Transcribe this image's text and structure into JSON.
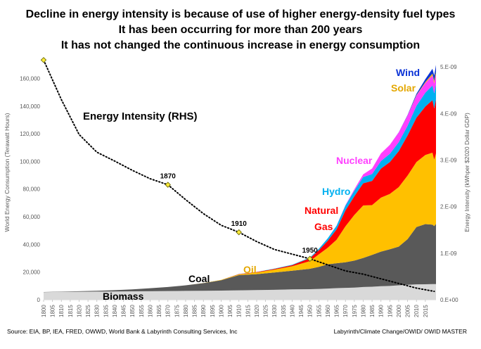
{
  "chart_data": {
    "type": "area",
    "title_lines": [
      "Decline in energy intensity is because of use of higher energy-density fuel types",
      "It has been occurring for more than 200 years",
      "It has not changed the continuous increase in energy consumption"
    ],
    "ylabel_left": "World Energy Consumption (Terawatt Hours)",
    "ylabel_right": "Energy Intensity (kWhper $2020 Dollar GDP)",
    "left_ylim": [
      0,
      175000
    ],
    "left_ticks": [
      {
        "v": 0,
        "label": "0"
      },
      {
        "v": 20000,
        "label": "20,000"
      },
      {
        "v": 40000,
        "label": "40,000"
      },
      {
        "v": 60000,
        "label": "60,000"
      },
      {
        "v": 80000,
        "label": "80,000"
      },
      {
        "v": 100000,
        "label": "100,000"
      },
      {
        "v": 120000,
        "label": "120,000"
      },
      {
        "v": 140000,
        "label": "140,000"
      },
      {
        "v": 160000,
        "label": "160,000"
      }
    ],
    "right_ylim": [
      0,
      5.2e-09
    ],
    "right_ticks": [
      {
        "v": 0,
        "label": "0.E+00"
      },
      {
        "v": 1e-09,
        "label": "1.E-09"
      },
      {
        "v": 2e-09,
        "label": "2.E-09"
      },
      {
        "v": 3e-09,
        "label": "3.E-09"
      },
      {
        "v": 4e-09,
        "label": "4.E-09"
      },
      {
        "v": 5e-09,
        "label": "5.E-09"
      }
    ],
    "x_range": [
      1800,
      2021
    ],
    "x_tick_labels": [
      "1800",
      "1805",
      "1810",
      "1815",
      "1820",
      "1825",
      "1830",
      "1835",
      "1840",
      "1845",
      "1850",
      "1855",
      "1860",
      "1865",
      "1870",
      "1875",
      "1880",
      "1885",
      "1890",
      "1895",
      "1900",
      "1905",
      "1910",
      "1915",
      "1920",
      "1925",
      "1930",
      "1935",
      "1940",
      "1945",
      "1950",
      "1955",
      "1960",
      "1965",
      "1970",
      "1975",
      "1980",
      "1985",
      "1990",
      "1995",
      "2000",
      "2005",
      "2010",
      "2015"
    ],
    "x": [
      1800,
      1810,
      1820,
      1830,
      1840,
      1850,
      1860,
      1870,
      1880,
      1890,
      1900,
      1910,
      1920,
      1930,
      1940,
      1950,
      1955,
      1960,
      1965,
      1970,
      1975,
      1980,
      1985,
      1990,
      1995,
      2000,
      2005,
      2010,
      2015,
      2019,
      2020,
      2021
    ],
    "series": [
      {
        "name": "Biomass",
        "color": "#d9d9d9",
        "values": [
          5500,
          5700,
          5800,
          5900,
          6000,
          6100,
          6200,
          6300,
          6400,
          6500,
          6600,
          6800,
          7000,
          7200,
          7500,
          7600,
          7800,
          8100,
          8400,
          8600,
          8800,
          9200,
          9400,
          9800,
          10000,
          10400,
          10800,
          11100,
          11200,
          11300,
          11300,
          11300
        ]
      },
      {
        "name": "Coal",
        "color": "#595959",
        "values": [
          100,
          200,
          400,
          600,
          900,
          1400,
          2100,
          2900,
          4000,
          5500,
          7500,
          11000,
          11500,
          12500,
          13500,
          14800,
          16000,
          17500,
          18000,
          18500,
          19500,
          21000,
          23000,
          25000,
          26500,
          28000,
          33000,
          41500,
          43500,
          43000,
          42000,
          43500
        ]
      },
      {
        "name": "Oil",
        "color": "#ffc000",
        "values": [
          0,
          0,
          0,
          0,
          0,
          0,
          0,
          0,
          0,
          100,
          300,
          600,
          1200,
          2100,
          3200,
          5500,
          9000,
          12000,
          17000,
          26000,
          33000,
          38000,
          36000,
          39000,
          40000,
          43000,
          46000,
          47000,
          50000,
          52000,
          48000,
          51000
        ]
      },
      {
        "name": "Natural Gas",
        "color": "#ff0000",
        "values": [
          0,
          0,
          0,
          0,
          0,
          0,
          0,
          0,
          0,
          0,
          0,
          200,
          300,
          500,
          800,
          2200,
          3000,
          5000,
          7500,
          11500,
          13500,
          16000,
          17500,
          21000,
          23000,
          26000,
          29000,
          32000,
          35000,
          38000,
          37000,
          39000
        ]
      },
      {
        "name": "Hydro",
        "color": "#00b0f0",
        "values": [
          0,
          0,
          0,
          0,
          0,
          0,
          0,
          0,
          0,
          0,
          0,
          50,
          100,
          200,
          300,
          400,
          1000,
          1800,
          2600,
          3500,
          4000,
          4500,
          5000,
          5500,
          6000,
          6500,
          7000,
          8600,
          10000,
          10600,
          11000,
          11000
        ]
      },
      {
        "name": "Nuclear",
        "color": "#ff40ff",
        "values": [
          0,
          0,
          0,
          0,
          0,
          0,
          0,
          0,
          0,
          0,
          0,
          0,
          0,
          0,
          0,
          0,
          0,
          0,
          100,
          300,
          1000,
          2000,
          4000,
          5500,
          6500,
          7000,
          7500,
          7400,
          7000,
          7300,
          7200,
          7400
        ]
      },
      {
        "name": "Solar",
        "color": "#ffc000",
        "values": [
          0,
          0,
          0,
          0,
          0,
          0,
          0,
          0,
          0,
          0,
          0,
          0,
          0,
          0,
          0,
          0,
          0,
          0,
          0,
          0,
          0,
          0,
          0,
          0,
          0,
          0,
          0,
          300,
          700,
          1300,
          1500,
          1800
        ]
      },
      {
        "name": "Wind",
        "color": "#0b33d6",
        "values": [
          0,
          0,
          0,
          0,
          0,
          0,
          0,
          0,
          0,
          0,
          0,
          0,
          0,
          0,
          0,
          0,
          0,
          0,
          0,
          0,
          0,
          0,
          0,
          0,
          0,
          100,
          300,
          1000,
          2100,
          3500,
          4100,
          4800
        ]
      }
    ],
    "intensity": {
      "name": "Energy Intensity (RHS)",
      "color": "#000000",
      "x": [
        1800,
        1810,
        1820,
        1830,
        1840,
        1850,
        1860,
        1870,
        1880,
        1890,
        1900,
        1910,
        1920,
        1930,
        1940,
        1950,
        1960,
        1970,
        1980,
        1990,
        2000,
        2010,
        2020
      ],
      "values": [
        5.15e-09,
        4.3e-09,
        3.55e-09,
        3.17e-09,
        2.98e-09,
        2.78e-09,
        2.6e-09,
        2.47e-09,
        2.15e-09,
        1.85e-09,
        1.6e-09,
        1.45e-09,
        1.25e-09,
        1.08e-09,
        9.8e-10,
        8.8e-10,
        7.5e-10,
        6.2e-10,
        5.5e-10,
        4.5e-10,
        3.5e-10,
        2.5e-10,
        1.8e-10
      ]
    },
    "markers": [
      {
        "year": 1800,
        "value": 5.15e-09,
        "label": ""
      },
      {
        "year": 1870,
        "value": 2.47e-09,
        "label": "1870"
      },
      {
        "year": 1910,
        "value": 1.45e-09,
        "label": "1910"
      },
      {
        "year": 1950,
        "value": 8.8e-10,
        "label": "1950"
      }
    ],
    "series_labels": [
      {
        "text": "Energy Intensity (RHS)",
        "color": "#000000",
        "size": 15
      },
      {
        "text": "Biomass",
        "color": "#000000",
        "size": 14
      },
      {
        "text": "Coal",
        "color": "#000000",
        "size": 14
      },
      {
        "text": "Oil",
        "color": "#e4a700",
        "size": 14
      },
      {
        "text": "Natural",
        "color": "#ff0000",
        "size": 14
      },
      {
        "text": "Gas",
        "color": "#ff0000",
        "size": 14
      },
      {
        "text": "Hydro",
        "color": "#00b0f0",
        "size": 14
      },
      {
        "text": "Nuclear",
        "color": "#ff40ff",
        "size": 14
      },
      {
        "text": "Solar",
        "color": "#e4a700",
        "size": 14
      },
      {
        "text": "Wind",
        "color": "#0b33d6",
        "size": 14
      }
    ],
    "source_left": "Source: EIA, BP, IEA, FRED, OWWD, World Bank & Labyrinth Consulting Services, Inc",
    "source_right": "Labyrinth/Climate Change/OWID/ OWID MASTER"
  }
}
